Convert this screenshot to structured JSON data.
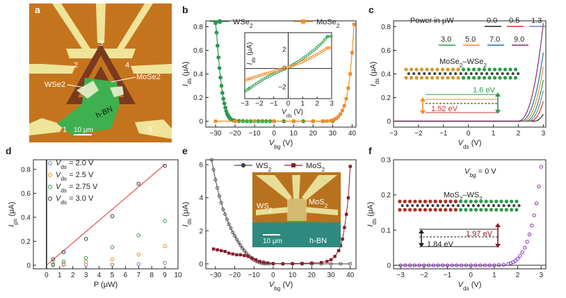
{
  "panel_letters": [
    "a",
    "b",
    "c",
    "d",
    "e",
    "f"
  ],
  "micro_a": {
    "electrodes": [
      "1",
      "2",
      "3",
      "4",
      "5"
    ],
    "wse2": "WSe2",
    "mose2": "MoSe2",
    "hbn": "h-BN",
    "scale": "10 μm",
    "colors": {
      "substrate": "#c5741e",
      "metal": "#efe49a",
      "hbn": "#3eb04f",
      "dark": "#7a3a1e"
    }
  },
  "micro_e": {
    "ws2": "WS2",
    "mos2": "MoS2",
    "hbn": "h-BN",
    "scale": "10 μm"
  },
  "chart_data": [
    {
      "panel": "b",
      "type": "line",
      "xlabel": "Vbg (V)",
      "ylabel": "Ids (μA)",
      "xlim": [
        -35,
        42
      ],
      "ylim": [
        -0.05,
        0.85
      ],
      "xticks": [
        -30,
        -20,
        -10,
        0,
        10,
        20,
        30,
        40
      ],
      "yticks": [
        0,
        0.2,
        0.4,
        0.6,
        0.8
      ],
      "legend": [
        {
          "name": "WSe2",
          "color": "#2a9a4c"
        },
        {
          "name": "MoSe2",
          "color": "#f28c28"
        }
      ],
      "series": [
        {
          "name": "WSe2",
          "color": "#2a9a4c",
          "marker": "circle",
          "x": [
            -30,
            -29.5,
            -29,
            -28.5,
            -28,
            -27.5,
            -27,
            -26.5,
            -26,
            -25.5,
            -25,
            -24.5,
            -24,
            -23.5,
            -23,
            -22.5,
            -22,
            -21,
            -20,
            -18,
            -16,
            -14,
            -12,
            -10,
            -8,
            -6,
            -4,
            -2,
            0,
            5,
            10,
            15,
            20,
            25,
            30
          ],
          "y": [
            0.83,
            0.75,
            0.64,
            0.54,
            0.45,
            0.37,
            0.3,
            0.24,
            0.19,
            0.15,
            0.115,
            0.085,
            0.06,
            0.045,
            0.032,
            0.022,
            0.015,
            0.008,
            0.004,
            0.002,
            0.001,
            0,
            0,
            0,
            0,
            0,
            0,
            0,
            0,
            0,
            0,
            0,
            0,
            0,
            0
          ]
        },
        {
          "name": "MoSe2",
          "color": "#f28c28",
          "marker": "square",
          "x": [
            -30,
            -20,
            -10,
            0,
            10,
            20,
            25,
            27,
            29,
            30,
            31,
            32,
            33,
            34,
            35,
            36,
            37,
            38,
            39,
            40,
            41
          ],
          "y": [
            0,
            0,
            0,
            0,
            0,
            0,
            0,
            0.001,
            0.004,
            0.008,
            0.015,
            0.025,
            0.04,
            0.06,
            0.09,
            0.13,
            0.19,
            0.28,
            0.4,
            0.58,
            0.82
          ]
        }
      ],
      "inset": {
        "xlabel": "Vds (V)",
        "ylabel": "Ids (μA)",
        "xlim": [
          -3,
          3
        ],
        "ylim": [
          -3.2,
          3.8
        ],
        "xticks": [
          -3,
          -2,
          -1,
          0,
          1,
          2,
          3
        ],
        "yticks": [
          -2,
          0,
          2
        ],
        "series": [
          {
            "name": "WSe2",
            "color": "#2a9a4c",
            "x": [
              -2.9,
              -2.5,
              -2,
              -1.5,
              -1,
              -0.5,
              0,
              0.5,
              1,
              1.5,
              2,
              2.5,
              2.9
            ],
            "y": [
              -2.5,
              -2.1,
              -1.6,
              -1.1,
              -0.7,
              -0.35,
              0,
              0.4,
              0.85,
              1.4,
              2.0,
              2.7,
              3.4
            ]
          },
          {
            "name": "MoSe2",
            "color": "#f28c28",
            "x": [
              -2.9,
              -2.5,
              -2,
              -1.5,
              -1,
              -0.5,
              0,
              0.5,
              1,
              1.5,
              2,
              2.5,
              2.9
            ],
            "y": [
              -1.3,
              -1.1,
              -0.85,
              -0.6,
              -0.4,
              -0.15,
              0.05,
              0.3,
              0.6,
              0.95,
              1.35,
              1.8,
              2.2
            ]
          }
        ]
      }
    },
    {
      "panel": "c",
      "type": "line",
      "xlabel": "Vds (V)",
      "ylabel": "Ids (μA)",
      "xlim": [
        -3,
        3.1
      ],
      "ylim": [
        -0.05,
        0.85
      ],
      "xticks": [
        -3,
        -2,
        -1,
        0,
        1,
        2,
        3
      ],
      "yticks": [
        0,
        0.2,
        0.4,
        0.6,
        0.8
      ],
      "legend_title": "Power in μW",
      "series": [
        {
          "name": "0.0",
          "color": "#222222",
          "y3": 0.06,
          "onset": 2.6
        },
        {
          "name": "0.5",
          "color": "#d9302c",
          "y3": 0.17,
          "onset": 2.45
        },
        {
          "name": "1.3",
          "color": "#6b7fc4",
          "y3": 0.26,
          "onset": 2.35
        },
        {
          "name": "3.0",
          "color": "#2a9a4c",
          "y3": 0.35,
          "onset": 2.25
        },
        {
          "name": "5.0",
          "color": "#f28c28",
          "y3": 0.46,
          "onset": 2.15
        },
        {
          "name": "7.0",
          "color": "#1f6fb4",
          "y3": 0.58,
          "onset": 2.05
        },
        {
          "name": "9.0",
          "color": "#8b2a6b",
          "y3": 0.83,
          "onset": 1.95
        }
      ],
      "annotations": {
        "heterostructure": "MoSe2–WSe2",
        "gap_high": "1.6 eV",
        "gap_low": "1.52 eV"
      }
    },
    {
      "panel": "d",
      "type": "scatter",
      "xlabel": "P (μW)",
      "ylabel": "Iph (μA)",
      "xlim": [
        -1,
        10
      ],
      "ylim": [
        -0.03,
        0.88
      ],
      "xticks": [
        0,
        1,
        2,
        3,
        4,
        5,
        6,
        7,
        8,
        9,
        10
      ],
      "yticks": [
        0,
        0.2,
        0.4,
        0.6,
        0.8
      ],
      "series": [
        {
          "name": "Vds = 2.0 V",
          "color": "#6b7fc4",
          "x": [
            0.5,
            1.3,
            3,
            5,
            7,
            9
          ],
          "y": [
            0,
            0.005,
            0.005,
            0.005,
            0.01,
            0.02
          ]
        },
        {
          "name": "Vds = 2.5 V",
          "color": "#f28c28",
          "x": [
            0.5,
            1.3,
            3,
            5,
            7,
            9
          ],
          "y": [
            0.005,
            0.01,
            0.03,
            0.05,
            0.09,
            0.16
          ]
        },
        {
          "name": "Vds = 2.75 V",
          "color": "#2a9a4c",
          "x": [
            0.5,
            1.3,
            3,
            5,
            7,
            9
          ],
          "y": [
            0.01,
            0.03,
            0.06,
            0.15,
            0.25,
            0.37
          ]
        },
        {
          "name": "Vds = 3.0 V",
          "color": "#333333",
          "x": [
            0.5,
            1.3,
            3,
            5,
            7,
            9
          ],
          "y": [
            0.05,
            0.11,
            0.22,
            0.41,
            0.68,
            0.83
          ]
        }
      ],
      "fit": {
        "color": "#d9302c",
        "x": [
          0,
          9
        ],
        "y": [
          0,
          0.84
        ]
      }
    },
    {
      "panel": "e",
      "type": "line",
      "xlabel": "Vbg (V)",
      "ylabel": "Ids (μA)",
      "xlim": [
        -35,
        43
      ],
      "ylim": [
        -0.3,
        6.3
      ],
      "xticks": [
        -30,
        -20,
        -10,
        0,
        10,
        20,
        30,
        40
      ],
      "yticks": [
        0,
        2,
        4,
        6
      ],
      "legend": [
        {
          "name": "WS2",
          "color": "#444444"
        },
        {
          "name": "MoS2",
          "color": "#8b1a2a"
        }
      ],
      "series": [
        {
          "name": "WS2",
          "color": "#444444",
          "marker": "circle",
          "x": [
            -32,
            -31,
            -30,
            -29,
            -28,
            -27,
            -26,
            -25,
            -24,
            -23,
            -22,
            -21,
            -20,
            -19,
            -18,
            -17,
            -16,
            -15,
            -14,
            -13,
            -12,
            -11,
            -10,
            -9,
            -8,
            -7,
            -6,
            -5,
            -4,
            -2,
            0,
            5,
            10,
            15,
            20,
            25,
            30,
            35,
            40
          ],
          "y": [
            6.3,
            5.7,
            5.1,
            4.6,
            4.1,
            3.7,
            3.3,
            3.0,
            2.7,
            2.4,
            2.15,
            1.9,
            1.7,
            1.5,
            1.3,
            1.12,
            0.95,
            0.8,
            0.65,
            0.53,
            0.42,
            0.32,
            0.24,
            0.17,
            0.12,
            0.08,
            0.05,
            0.03,
            0.02,
            0.01,
            0.01,
            0,
            0,
            0,
            0,
            0,
            0,
            0,
            0
          ]
        },
        {
          "name": "MoS2",
          "color": "#8b1a2a",
          "marker": "square",
          "x": [
            -31,
            -29,
            -27,
            -25,
            -23,
            -21,
            -19,
            -17,
            -15,
            -13,
            -11,
            -9,
            -7,
            -5,
            -3,
            0,
            5,
            10,
            15,
            20,
            25,
            28,
            30,
            32,
            34,
            35,
            36,
            37,
            38,
            39,
            40
          ],
          "y": [
            0.9,
            0.85,
            0.8,
            0.75,
            0.65,
            0.6,
            0.55,
            0.55,
            0.5,
            0.45,
            0.35,
            0.25,
            0.15,
            0.1,
            0.05,
            0.02,
            0.01,
            0.02,
            0.03,
            0.05,
            0.08,
            0.15,
            0.25,
            0.45,
            0.8,
            1.1,
            1.5,
            2.2,
            3.0,
            4.0,
            5.9
          ]
        }
      ]
    },
    {
      "panel": "f",
      "type": "scatter",
      "xlabel": "Vds (V)",
      "ylabel": "Ids (μA)",
      "xlim": [
        -3.3,
        3.2
      ],
      "ylim": [
        -0.01,
        0.3
      ],
      "xticks": [
        -3,
        -2,
        -1,
        0,
        1,
        2,
        3
      ],
      "yticks": [
        0,
        0.1,
        0.2,
        0.3
      ],
      "series": [
        {
          "name": "MoS2–WS2",
          "color": "#8a2fbd",
          "x": [
            -3,
            -2.8,
            -2.6,
            -2.4,
            -2.2,
            -2,
            -1.8,
            -1.6,
            -1.4,
            -1.2,
            -1,
            -0.8,
            -0.6,
            -0.4,
            -0.2,
            0,
            0.2,
            0.4,
            0.6,
            0.8,
            1,
            1.2,
            1.4,
            1.6,
            1.7,
            1.8,
            1.9,
            2,
            2.1,
            2.2,
            2.3,
            2.4,
            2.5,
            2.6,
            2.7,
            2.8,
            2.9,
            3
          ],
          "y": [
            0,
            0,
            0,
            0,
            0,
            0,
            0,
            0,
            0,
            0,
            0,
            0,
            0,
            0,
            0,
            0,
            0,
            0,
            0,
            0,
            0,
            0.001,
            0.002,
            0.004,
            0.006,
            0.009,
            0.013,
            0.019,
            0.027,
            0.037,
            0.05,
            0.067,
            0.088,
            0.113,
            0.142,
            0.176,
            0.224,
            0.28
          ]
        }
      ],
      "annotations": {
        "gate": "Vbg = 0 V",
        "heterostructure": "MoS2–WS2",
        "gap_high": "1.97 eV",
        "gap_low": "1.84 eV"
      }
    }
  ]
}
